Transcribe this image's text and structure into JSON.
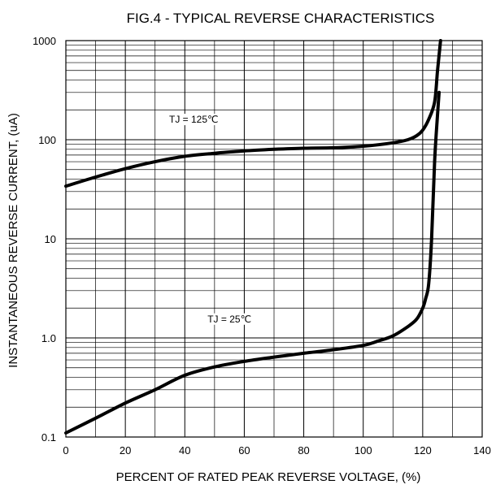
{
  "chart_data": {
    "type": "line",
    "title": "FIG.4 - TYPICAL REVERSE CHARACTERISTICS",
    "xlabel": "PERCENT OF RATED PEAK REVERSE VOLTAGE,  (%)",
    "ylabel": "INSTANTANEOUS REVERSE CURRENT, (uA)",
    "x_scale": "linear",
    "y_scale": "log",
    "xlim": [
      0,
      140
    ],
    "ylim": [
      0.1,
      1000
    ],
    "x_ticks": [
      0,
      20,
      40,
      60,
      80,
      100,
      120,
      140
    ],
    "x_tick_labels": [
      "0",
      "20",
      "40",
      "60",
      "80",
      "100",
      "120",
      "140"
    ],
    "y_ticks": [
      0.1,
      1,
      10,
      100,
      1000
    ],
    "y_tick_labels": [
      "0.1",
      "1.0",
      "10",
      "100",
      "1000"
    ],
    "grid": "on (log minor lines on y)",
    "legend": "none",
    "series": [
      {
        "name": "TJ = 125℃",
        "points": [
          [
            0,
            34
          ],
          [
            10,
            42
          ],
          [
            20,
            51
          ],
          [
            30,
            60
          ],
          [
            40,
            68
          ],
          [
            50,
            73
          ],
          [
            60,
            77
          ],
          [
            70,
            80
          ],
          [
            80,
            82
          ],
          [
            90,
            83
          ],
          [
            100,
            86
          ],
          [
            110,
            93
          ],
          [
            115,
            100
          ],
          [
            118,
            110
          ],
          [
            120,
            125
          ],
          [
            122,
            160
          ],
          [
            124,
            240
          ],
          [
            125,
            500
          ],
          [
            126,
            1000
          ]
        ]
      },
      {
        "name": "TJ = 25℃",
        "points": [
          [
            0,
            0.11
          ],
          [
            10,
            0.155
          ],
          [
            20,
            0.22
          ],
          [
            30,
            0.3
          ],
          [
            40,
            0.42
          ],
          [
            50,
            0.51
          ],
          [
            60,
            0.58
          ],
          [
            70,
            0.64
          ],
          [
            80,
            0.7
          ],
          [
            90,
            0.76
          ],
          [
            100,
            0.84
          ],
          [
            105,
            0.93
          ],
          [
            110,
            1.05
          ],
          [
            115,
            1.3
          ],
          [
            118,
            1.55
          ],
          [
            120,
            2.0
          ],
          [
            121,
            2.5
          ],
          [
            122,
            3.5
          ],
          [
            123,
            10
          ],
          [
            124,
            60
          ],
          [
            125,
            180
          ],
          [
            125.5,
            300
          ]
        ]
      }
    ],
    "annotations": [
      {
        "text": "TJ = 125℃",
        "x": 43,
        "y": 160
      },
      {
        "text": "TJ = 25℃",
        "x": 55,
        "y": 1.55
      }
    ]
  }
}
